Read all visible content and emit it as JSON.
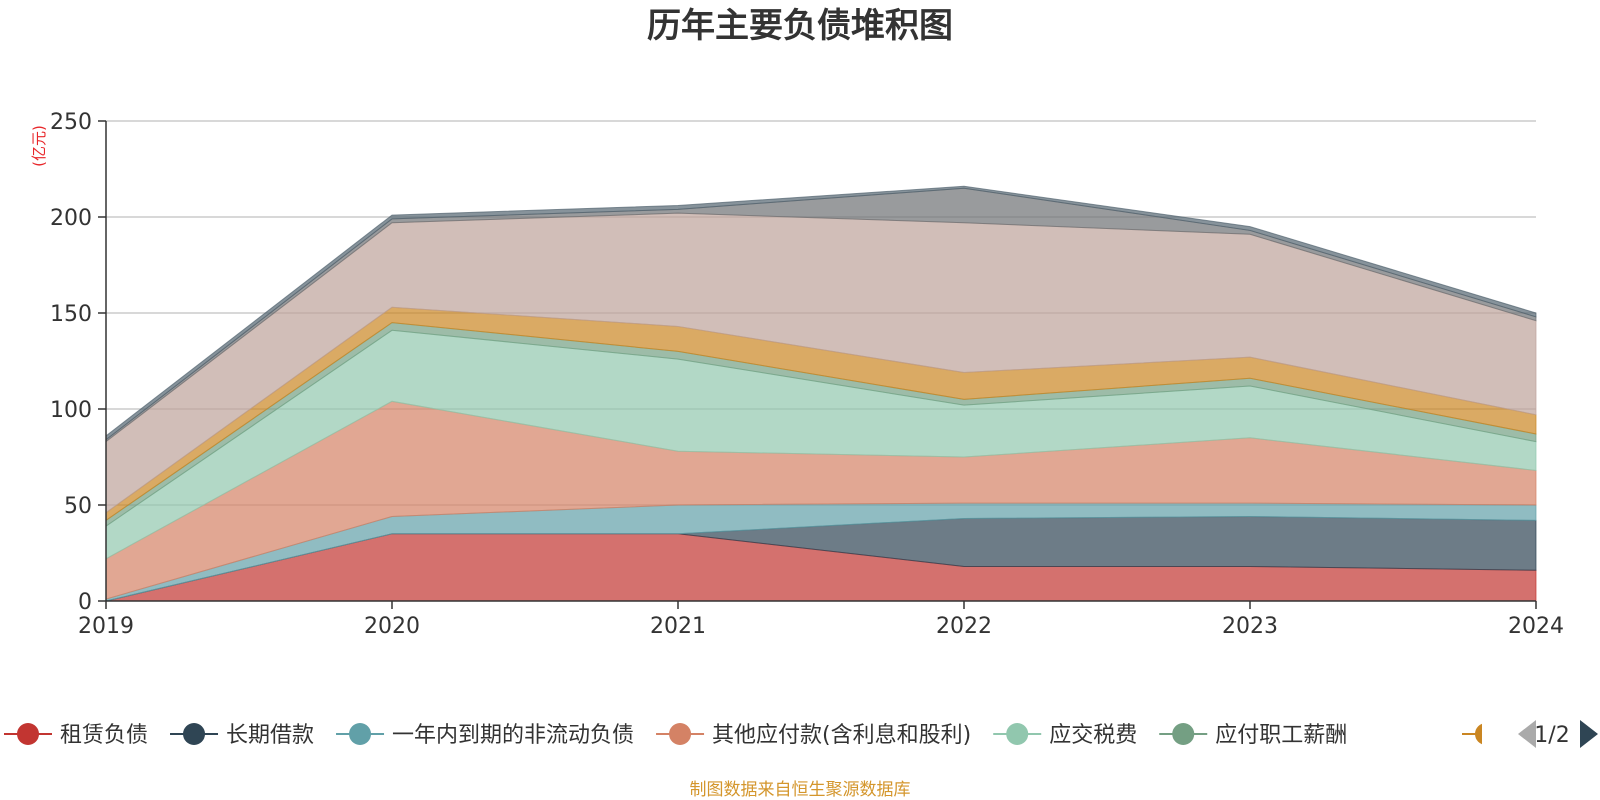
{
  "chart_data": {
    "type": "area",
    "stacked": true,
    "title": "历年主要负债堆积图",
    "unit": "(亿元)",
    "x": [
      "2019",
      "2020",
      "2021",
      "2022",
      "2023",
      "2024"
    ],
    "ylim": [
      0,
      250
    ],
    "yticks": [
      0,
      50,
      100,
      150,
      200,
      250
    ],
    "grid": true,
    "legend_position": "bottom",
    "legend_page": "1/2",
    "series": [
      {
        "name": "租赁负债",
        "color": "#c23531",
        "values": [
          0,
          35,
          35,
          18,
          18,
          16
        ]
      },
      {
        "name": "长期借款",
        "color": "#2f4554",
        "values": [
          0,
          0,
          0,
          25,
          26,
          26
        ]
      },
      {
        "name": "一年内到期的非流动负债",
        "color": "#61a0a8",
        "values": [
          1,
          9,
          15,
          8,
          7,
          8
        ]
      },
      {
        "name": "其他应付款(含利息和股利)",
        "color": "#d48265",
        "values": [
          21,
          60,
          28,
          24,
          34,
          18
        ]
      },
      {
        "name": "应交税费",
        "color": "#91c7ae",
        "values": [
          17,
          37,
          48,
          27,
          27,
          15
        ]
      },
      {
        "name": "应付职工薪酬",
        "color": "#749f83",
        "values": [
          3,
          4,
          4,
          3,
          4,
          4
        ]
      },
      {
        "name": "",
        "color": "#ca8622",
        "values": [
          4,
          8,
          13,
          14,
          11,
          10
        ]
      },
      {
        "name": "",
        "color": "#bda29a",
        "values": [
          37,
          44,
          59,
          78,
          64,
          49
        ]
      },
      {
        "name": "",
        "color": "#6e7074",
        "values": [
          1,
          2,
          2,
          18,
          2,
          2
        ]
      },
      {
        "name": "",
        "color": "#546570",
        "values": [
          2,
          2,
          2,
          1,
          2,
          2
        ]
      }
    ]
  },
  "source_note": "制图数据来自恒生聚源数据库"
}
